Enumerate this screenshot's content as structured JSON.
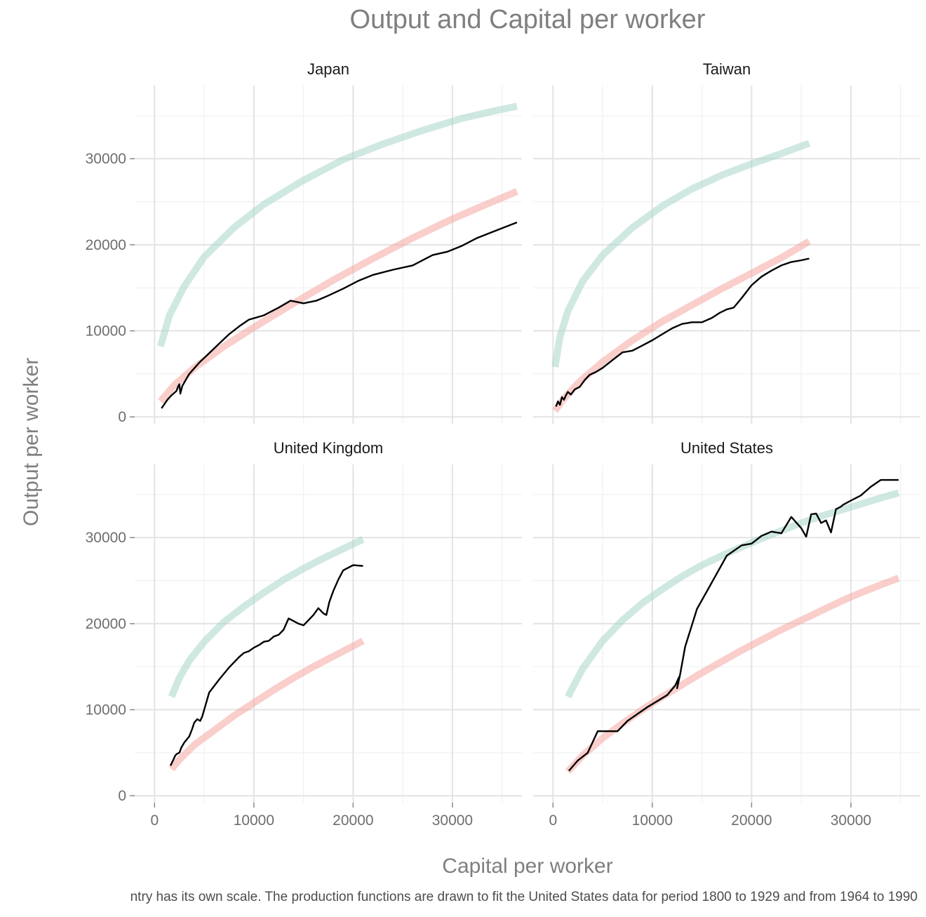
{
  "chart_data": {
    "type": "line",
    "title": "Output and Capital per worker",
    "xlabel": "Capital per worker",
    "ylabel": "Output per worker",
    "caption": "ntry has its own scale. The production functions are drawn to fit the United States data for period 1800 to 1929 and from 1964 to 1990",
    "xlim": [
      -2000,
      37000
    ],
    "ylim": [
      -800,
      38500
    ],
    "x_ticks": [
      0,
      10000,
      20000,
      30000
    ],
    "y_ticks": [
      0,
      10000,
      20000,
      30000
    ],
    "grid": true,
    "colors": {
      "actual": "#000000",
      "fit_1800_1929": "#f4a6a0",
      "fit_1964_1990": "#a8d5cb"
    },
    "facets": [
      {
        "name": "Japan",
        "series": [
          {
            "key": "fit_1964_1990",
            "x": [
              600,
              1500,
              3000,
              5000,
              8000,
              11000,
              15000,
              19000,
              23000,
              27000,
              31000,
              34000,
              36500
            ],
            "y": [
              8200,
              11800,
              15200,
              18600,
              22000,
              24700,
              27500,
              29900,
              31700,
              33300,
              34700,
              35500,
              36100
            ]
          },
          {
            "key": "fit_1800_1929",
            "x": [
              600,
              2000,
              4000,
              7000,
              10000,
              14000,
              18000,
              22000,
              26000,
              30000,
              33000,
              36500
            ],
            "y": [
              1800,
              3700,
              5700,
              8200,
              10400,
              13200,
              15900,
              18400,
              20800,
              23000,
              24500,
              26200
            ]
          },
          {
            "key": "actual",
            "x": [
              700,
              1000,
              1300,
              1700,
              2200,
              2400,
              2500,
              2600,
              2800,
              3500,
              4500,
              5500,
              6500,
              7500,
              8500,
              9500,
              11000,
              12500,
              13700,
              15000,
              16300,
              17500,
              19000,
              20500,
              22000,
              24000,
              26000,
              28000,
              29500,
              31000,
              32500,
              34500,
              36500
            ],
            "y": [
              1000,
              1500,
              2000,
              2500,
              3000,
              3600,
              3800,
              2700,
              3600,
              5000,
              6300,
              7400,
              8500,
              9600,
              10500,
              11300,
              11800,
              12700,
              13500,
              13200,
              13500,
              14100,
              14900,
              15800,
              16500,
              17100,
              17600,
              18800,
              19200,
              19900,
              20800,
              21700,
              22600
            ]
          }
        ]
      },
      {
        "name": "Taiwan",
        "series": [
          {
            "key": "fit_1964_1990",
            "x": [
              200,
              700,
              1500,
              3000,
              5000,
              8000,
              11000,
              14000,
              17000,
              20000,
              23000,
              25800
            ],
            "y": [
              5800,
              9300,
              12300,
              15800,
              18800,
              22000,
              24500,
              26500,
              28100,
              29400,
              30600,
              31800
            ]
          },
          {
            "key": "fit_1800_1929",
            "x": [
              200,
              1000,
              2500,
              5000,
              8000,
              11000,
              14000,
              17000,
              20000,
              23000,
              25800
            ],
            "y": [
              700,
              2000,
              3900,
              6400,
              8900,
              11100,
              13000,
              14900,
              16700,
              18500,
              20400
            ]
          },
          {
            "key": "actual",
            "x": [
              300,
              500,
              700,
              900,
              1100,
              1300,
              1500,
              1800,
              2200,
              2700,
              3200,
              3700,
              4300,
              5000,
              6000,
              7000,
              8000,
              9000,
              10000,
              11000,
              12000,
              13000,
              14000,
              15000,
              16000,
              16800,
              17500,
              18200,
              19000,
              20000,
              21000,
              22000,
              23000,
              24000,
              25000,
              25800
            ],
            "y": [
              1200,
              1800,
              1400,
              2300,
              2000,
              2500,
              2900,
              2600,
              3200,
              3500,
              4300,
              4900,
              5200,
              5700,
              6600,
              7500,
              7700,
              8300,
              8900,
              9600,
              10300,
              10800,
              11000,
              11000,
              11500,
              12100,
              12500,
              12700,
              13800,
              15300,
              16300,
              17000,
              17600,
              18000,
              18200,
              18400
            ]
          }
        ]
      },
      {
        "name": "United Kingdom",
        "series": [
          {
            "key": "fit_1964_1990",
            "x": [
              1700,
              2500,
              3500,
              5000,
              7000,
              9000,
              11000,
              13000,
              15000,
              17000,
              19000,
              21000
            ],
            "y": [
              11500,
              13700,
              15700,
              17900,
              20200,
              22000,
              23600,
              25100,
              26400,
              27600,
              28700,
              29800
            ]
          },
          {
            "key": "fit_1800_1929",
            "x": [
              1700,
              2500,
              4000,
              6000,
              8000,
              10000,
              12000,
              14000,
              16000,
              18000,
              21000
            ],
            "y": [
              3100,
              4200,
              5900,
              7600,
              9300,
              10800,
              12300,
              13700,
              15000,
              16200,
              18000
            ]
          },
          {
            "key": "actual",
            "x": [
              1600,
              1900,
              2100,
              2300,
              2500,
              2700,
              3000,
              3500,
              3800,
              4000,
              4300,
              4600,
              4800,
              5000,
              5500,
              6500,
              7500,
              8500,
              9000,
              9500,
              10000,
              10500,
              11000,
              11500,
              12000,
              12500,
              13000,
              13500,
              14000,
              14500,
              15000,
              15500,
              16000,
              16500,
              17000,
              17300,
              17600,
              18000,
              18500,
              19000,
              20000,
              21000
            ],
            "y": [
              3500,
              4200,
              4700,
              4900,
              5000,
              5600,
              6200,
              6900,
              7800,
              8500,
              8900,
              8700,
              9200,
              10000,
              12000,
              13500,
              14900,
              16100,
              16600,
              16800,
              17200,
              17500,
              17900,
              18000,
              18500,
              18700,
              19300,
              20600,
              20300,
              20000,
              19800,
              20400,
              21000,
              21800,
              21200,
              21000,
              22500,
              23800,
              25100,
              26200,
              26800,
              26700
            ]
          }
        ]
      },
      {
        "name": "United States",
        "series": [
          {
            "key": "fit_1964_1990",
            "x": [
              1500,
              3000,
              5000,
              7000,
              9000,
              11000,
              13000,
              15000,
              17000,
              19000,
              21000,
              23000,
              25000,
              27000,
              29000,
              31000,
              33000,
              34800
            ],
            "y": [
              11500,
              14800,
              18000,
              20400,
              22400,
              24000,
              25500,
              26800,
              27900,
              28900,
              29900,
              30800,
              31700,
              32500,
              33200,
              33900,
              34600,
              35200
            ]
          },
          {
            "key": "fit_1800_1929",
            "x": [
              1500,
              3000,
              5000,
              7000,
              9000,
              11000,
              13000,
              15000,
              17000,
              19000,
              21000,
              23000,
              25000,
              27000,
              29000,
              31000,
              33000,
              34800
            ],
            "y": [
              2800,
              4700,
              6700,
              8400,
              10000,
              11500,
              12900,
              14300,
              15600,
              16900,
              18100,
              19300,
              20400,
              21500,
              22600,
              23600,
              24500,
              25300
            ]
          },
          {
            "key": "actual",
            "x": [
              1600,
              2500,
              3500,
              4500,
              5500,
              6500,
              7500,
              8500,
              9500,
              10500,
              11500,
              12300,
              12700,
              12500,
              12800,
              13300,
              14500,
              16000,
              17500,
              19000,
              20000,
              21000,
              22000,
              23000,
              24000,
              25000,
              25500,
              26000,
              26500,
              27000,
              27500,
              28000,
              28500,
              29000,
              29200,
              30000,
              31000,
              32000,
              33000,
              33700,
              34800
            ],
            "y": [
              2900,
              4100,
              5000,
              7500,
              7500,
              7500,
              8700,
              9500,
              10300,
              11000,
              11700,
              12800,
              13800,
              12500,
              14100,
              17300,
              21700,
              24800,
              27900,
              29100,
              29300,
              30200,
              30700,
              30500,
              32400,
              31100,
              30100,
              32700,
              32800,
              31700,
              32000,
              30600,
              33300,
              33600,
              33800,
              34300,
              34900,
              35900,
              36700,
              36700,
              36700
            ]
          }
        ]
      }
    ]
  }
}
